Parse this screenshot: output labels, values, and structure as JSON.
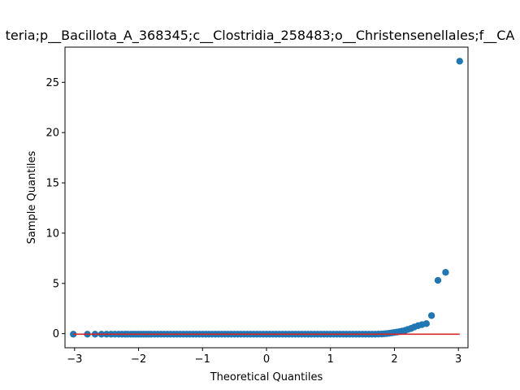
{
  "chart_data": {
    "type": "scatter",
    "title": "teria;p__Bacillota_A_368345;c__Clostridia_258483;o__Christensenellales;f__CA",
    "xlabel": "Theoretical Quantiles",
    "ylabel": "Sample Quantiles",
    "xlim": [
      -3.15,
      3.15
    ],
    "ylim": [
      -1.4,
      28.5
    ],
    "xticks": [
      -3,
      -2,
      -1,
      0,
      1,
      2,
      3
    ],
    "xtick_labels": [
      "−3",
      "−2",
      "−1",
      "0",
      "1",
      "2",
      "3"
    ],
    "yticks": [
      0,
      5,
      10,
      15,
      20,
      25
    ],
    "ytick_labels": [
      "0",
      "5",
      "10",
      "15",
      "20",
      "25"
    ],
    "grid": false,
    "series": [
      {
        "kind": "points",
        "color": "#1f77b4",
        "x": [
          -3.02,
          -2.8,
          -2.68,
          -2.58,
          -2.5,
          -2.43,
          -2.37,
          -2.31,
          -2.26,
          -2.21,
          -2.17,
          -2.12,
          -2.08,
          -2.04,
          -2.0,
          -1.96,
          -1.92,
          -1.88,
          -1.84,
          -1.8,
          -1.75,
          -1.7,
          -1.65,
          -1.6,
          -1.55,
          -1.5,
          -1.45,
          -1.4,
          -1.35,
          -1.3,
          -1.25,
          -1.2,
          -1.15,
          -1.1,
          -1.05,
          -1.0,
          -0.95,
          -0.9,
          -0.85,
          -0.8,
          -0.75,
          -0.7,
          -0.65,
          -0.6,
          -0.55,
          -0.5,
          -0.45,
          -0.4,
          -0.35,
          -0.3,
          -0.25,
          -0.2,
          -0.15,
          -0.1,
          -0.05,
          0.0,
          0.05,
          0.1,
          0.15,
          0.2,
          0.25,
          0.3,
          0.35,
          0.4,
          0.45,
          0.5,
          0.55,
          0.6,
          0.65,
          0.7,
          0.75,
          0.8,
          0.85,
          0.9,
          0.95,
          1.0,
          1.05,
          1.1,
          1.15,
          1.2,
          1.25,
          1.3,
          1.35,
          1.4,
          1.45,
          1.5,
          1.55,
          1.6,
          1.65,
          1.7,
          1.75,
          1.8,
          1.84,
          1.88,
          1.92,
          1.96,
          2.0,
          2.04,
          2.08,
          2.12,
          2.17,
          2.21,
          2.26,
          2.31,
          2.37,
          2.43,
          2.5,
          2.58,
          2.68,
          2.8,
          3.02
        ],
        "y": [
          -0.05,
          -0.05,
          -0.05,
          -0.05,
          -0.05,
          -0.05,
          -0.05,
          -0.05,
          -0.05,
          -0.05,
          -0.05,
          -0.05,
          -0.05,
          -0.05,
          -0.05,
          -0.05,
          -0.05,
          -0.05,
          -0.05,
          -0.05,
          -0.05,
          -0.05,
          -0.05,
          -0.05,
          -0.05,
          -0.05,
          -0.05,
          -0.05,
          -0.05,
          -0.05,
          -0.05,
          -0.05,
          -0.05,
          -0.05,
          -0.05,
          -0.05,
          -0.05,
          -0.05,
          -0.05,
          -0.05,
          -0.05,
          -0.05,
          -0.05,
          -0.05,
          -0.05,
          -0.05,
          -0.05,
          -0.05,
          -0.05,
          -0.05,
          -0.05,
          -0.05,
          -0.05,
          -0.05,
          -0.05,
          -0.05,
          -0.05,
          -0.05,
          -0.05,
          -0.05,
          -0.05,
          -0.05,
          -0.05,
          -0.05,
          -0.05,
          -0.05,
          -0.05,
          -0.05,
          -0.05,
          -0.05,
          -0.05,
          -0.05,
          -0.05,
          -0.05,
          -0.05,
          -0.05,
          -0.05,
          -0.05,
          -0.05,
          -0.05,
          -0.05,
          -0.05,
          -0.05,
          -0.05,
          -0.05,
          -0.05,
          -0.05,
          -0.05,
          -0.05,
          -0.05,
          -0.04,
          -0.03,
          -0.01,
          0.01,
          0.04,
          0.08,
          0.12,
          0.16,
          0.2,
          0.26,
          0.33,
          0.42,
          0.52,
          0.66,
          0.8,
          0.9,
          1.0,
          1.8,
          5.3,
          6.1,
          27.1
        ]
      },
      {
        "kind": "line",
        "color": "#d62728",
        "x": [
          -3.02,
          3.02
        ],
        "y": [
          -0.05,
          -0.05
        ]
      }
    ]
  }
}
